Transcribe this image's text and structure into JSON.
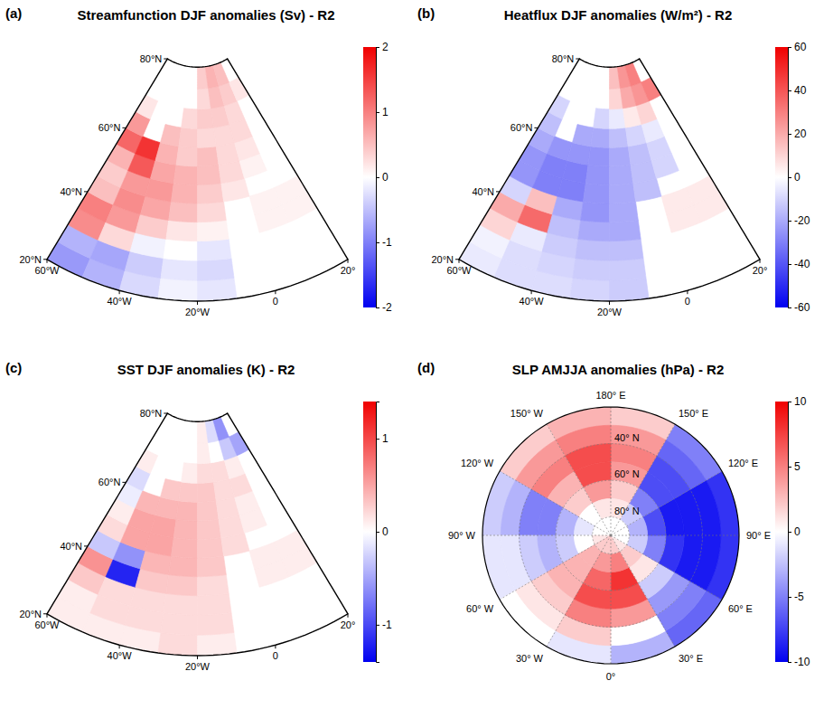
{
  "chart_data": [
    {
      "type": "heatmap",
      "label": "(a)",
      "title": "Streamfunction DJF anomalies (Sv) - R2",
      "xlim": [
        -60,
        20
      ],
      "ylim": [
        20,
        80
      ],
      "xticks": [
        {
          "value": -60,
          "label": "60°W"
        },
        {
          "value": -40,
          "label": "40°W"
        },
        {
          "value": -20,
          "label": "20°W"
        },
        0,
        {
          "value": 20,
          "label": "20°"
        }
      ],
      "yticks": [
        {
          "value": 20,
          "label": "20°N"
        },
        {
          "value": 40,
          "label": "40°N"
        },
        {
          "value": 60,
          "label": "60°N"
        },
        {
          "value": 80,
          "label": "80°N"
        }
      ],
      "x_bins": [
        -60,
        -50,
        -40,
        -30,
        -20,
        -10,
        0,
        10,
        20
      ],
      "y_bins": [
        20,
        25,
        30,
        35,
        40,
        45,
        50,
        55,
        60,
        65,
        70,
        75,
        80
      ],
      "cells": [
        [
          -0.8,
          -0.6,
          -0.3,
          -0.1,
          -0.2,
          null,
          null,
          null
        ],
        [
          -0.6,
          -0.7,
          -0.4,
          -0.2,
          -0.3,
          null,
          null,
          null
        ],
        [
          0.9,
          0.3,
          -0.1,
          0.0,
          -0.2,
          null,
          null,
          null
        ],
        [
          1.0,
          0.8,
          0.4,
          0.2,
          0.1,
          null,
          0.1,
          0.1
        ],
        [
          0.5,
          0.9,
          0.7,
          0.5,
          0.3,
          null,
          0.1,
          0.1
        ],
        [
          0.4,
          0.8,
          0.8,
          0.6,
          0.4,
          0.2,
          null,
          null
        ],
        [
          0.6,
          1.3,
          0.7,
          0.6,
          0.5,
          0.3,
          0.1,
          null
        ],
        [
          1.2,
          1.6,
          0.6,
          0.4,
          0.5,
          0.3,
          0.2,
          null
        ],
        [
          0.8,
          null,
          0.5,
          0.4,
          0.3,
          0.3,
          0.3,
          null
        ],
        [
          0.2,
          null,
          null,
          0.3,
          0.4,
          0.4,
          0.3,
          null
        ],
        [
          null,
          null,
          null,
          null,
          0.3,
          0.5,
          0.4,
          0.2
        ],
        [
          null,
          null,
          null,
          null,
          0.4,
          0.6,
          0.5,
          null
        ]
      ],
      "colorbar": {
        "range": [
          -2,
          2
        ],
        "ticks": [
          -2,
          -1,
          0,
          1,
          2
        ]
      }
    },
    {
      "type": "heatmap",
      "label": "(b)",
      "title": "Heatflux DJF anomalies (W/m²) - R2",
      "xlim": [
        -60,
        20
      ],
      "ylim": [
        20,
        80
      ],
      "xticks": [
        {
          "value": -60,
          "label": "60°W"
        },
        {
          "value": -40,
          "label": "40°W"
        },
        {
          "value": -20,
          "label": "20°W"
        },
        0,
        {
          "value": 20,
          "label": "20°"
        }
      ],
      "yticks": [
        {
          "value": 20,
          "label": "20°N"
        },
        {
          "value": 40,
          "label": "40°N"
        },
        {
          "value": 60,
          "label": "60°N"
        },
        {
          "value": 80,
          "label": "80°N"
        }
      ],
      "x_bins": [
        -60,
        -50,
        -40,
        -30,
        -20,
        -10,
        0,
        10,
        20
      ],
      "y_bins": [
        20,
        25,
        30,
        35,
        40,
        45,
        50,
        55,
        60,
        65,
        70,
        75,
        80
      ],
      "cells": [
        [
          -5,
          -8,
          -8,
          -10,
          -12,
          null,
          null,
          null
        ],
        [
          -3,
          -8,
          -10,
          -12,
          -12,
          null,
          null,
          null
        ],
        [
          10,
          -5,
          -12,
          -15,
          -15,
          null,
          null,
          null
        ],
        [
          20,
          35,
          -15,
          -20,
          -20,
          null,
          5,
          5
        ],
        [
          -10,
          15,
          -20,
          -25,
          -20,
          null,
          5,
          5
        ],
        [
          -25,
          -30,
          -30,
          -25,
          -20,
          -15,
          null,
          null
        ],
        [
          -25,
          -30,
          -30,
          -25,
          -20,
          -15,
          -10,
          null
        ],
        [
          -20,
          -25,
          -25,
          -25,
          -20,
          -15,
          -10,
          null
        ],
        [
          -15,
          null,
          -20,
          -20,
          -15,
          -10,
          -5,
          null
        ],
        [
          -10,
          null,
          null,
          -10,
          -5,
          5,
          10,
          null
        ],
        [
          null,
          null,
          null,
          null,
          10,
          20,
          25,
          30
        ],
        [
          null,
          null,
          null,
          null,
          15,
          25,
          30,
          null
        ]
      ],
      "colorbar": {
        "range": [
          -60,
          60
        ],
        "ticks": [
          -60,
          -40,
          -20,
          0,
          20,
          40,
          60
        ]
      }
    },
    {
      "type": "heatmap",
      "label": "(c)",
      "title": "SST DJF anomalies (K) - R2",
      "xlim": [
        -60,
        20
      ],
      "ylim": [
        20,
        80
      ],
      "xticks": [
        {
          "value": -60,
          "label": "60°W"
        },
        {
          "value": -40,
          "label": "40°W"
        },
        {
          "value": -20,
          "label": "20°W"
        },
        0,
        {
          "value": 20,
          "label": "20°"
        }
      ],
      "yticks": [
        {
          "value": 20,
          "label": "20°N"
        },
        {
          "value": 40,
          "label": "40°N"
        },
        {
          "value": 60,
          "label": "60°N"
        },
        {
          "value": 80,
          "label": "80°N"
        }
      ],
      "x_bins": [
        -60,
        -50,
        -40,
        -30,
        -20,
        -10,
        0,
        10,
        20
      ],
      "y_bins": [
        20,
        25,
        30,
        35,
        40,
        45,
        50,
        55,
        60,
        65,
        70,
        75,
        80
      ],
      "cells": [
        [
          0.1,
          0.1,
          0.1,
          0.2,
          0.1,
          null,
          null,
          null
        ],
        [
          0.1,
          0.2,
          0.2,
          0.2,
          0.2,
          null,
          null,
          null
        ],
        [
          0.3,
          0.2,
          0.2,
          0.2,
          0.2,
          null,
          null,
          null
        ],
        [
          0.6,
          -1.2,
          0.3,
          0.3,
          0.2,
          null,
          0.1,
          0.1
        ],
        [
          -0.3,
          -0.6,
          0.4,
          0.4,
          0.3,
          null,
          0.1,
          0.1
        ],
        [
          0.2,
          0.5,
          0.5,
          0.4,
          0.3,
          0.2,
          null,
          null
        ],
        [
          0.1,
          0.5,
          0.5,
          0.4,
          0.3,
          0.2,
          0.1,
          null
        ],
        [
          -0.1,
          0.4,
          0.4,
          0.4,
          0.3,
          0.2,
          0.1,
          null
        ],
        [
          -0.2,
          null,
          0.3,
          0.3,
          0.3,
          0.2,
          0.2,
          null
        ],
        [
          0.1,
          null,
          null,
          0.1,
          0.2,
          0.2,
          0.1,
          null
        ],
        [
          null,
          null,
          null,
          null,
          0.1,
          0.0,
          -0.3,
          -0.5
        ],
        [
          null,
          null,
          null,
          null,
          0.1,
          -0.2,
          -0.6,
          null
        ]
      ],
      "colorbar": {
        "range": [
          -1.4,
          1.4
        ],
        "ticks": [
          -1,
          0,
          1
        ]
      }
    },
    {
      "type": "polar",
      "label": "(d)",
      "title": "SLP AMJJA anomalies (hPa) - R2",
      "xlim": [
        0,
        360
      ],
      "ylim": [
        20,
        90
      ],
      "grid": true,
      "xticks": [
        {
          "value": 0,
          "label": "0°"
        },
        {
          "value": 30,
          "label": "30° E"
        },
        {
          "value": 60,
          "label": "60° E"
        },
        {
          "value": 90,
          "label": "90° E"
        },
        {
          "value": 120,
          "label": "120° E"
        },
        {
          "value": 150,
          "label": "150° E"
        },
        {
          "value": 180,
          "label": "180° E"
        },
        {
          "value": 210,
          "label": "150° W"
        },
        {
          "value": 240,
          "label": "120° W"
        },
        {
          "value": 270,
          "label": "90° W"
        },
        {
          "value": 300,
          "label": "60° W"
        },
        {
          "value": 330,
          "label": "30° W"
        }
      ],
      "yticks": [
        {
          "value": 40,
          "label": "40° N"
        },
        {
          "value": 60,
          "label": "60° N"
        },
        {
          "value": 80,
          "label": "80° N"
        }
      ],
      "x_bins": [
        0,
        30,
        60,
        90,
        120,
        150,
        180,
        210,
        240,
        270,
        300,
        330,
        360
      ],
      "y_bins": [
        20,
        30,
        40,
        50,
        60,
        70,
        80,
        90
      ],
      "cells": [
        [
          -3,
          -6,
          -8,
          -8,
          -5,
          2,
          3,
          2,
          -2,
          -1,
          0,
          -1
        ],
        [
          0,
          -5,
          -9,
          -9,
          -6,
          4,
          5,
          4,
          -3,
          -1,
          1,
          2
        ],
        [
          4,
          -4,
          -9,
          -9,
          -7,
          5,
          7,
          5,
          -5,
          -2,
          2,
          5
        ],
        [
          7,
          -2,
          -8,
          -9,
          -7,
          4,
          7,
          3,
          -5,
          -3,
          3,
          7
        ],
        [
          8,
          1,
          -5,
          -7,
          -5,
          2,
          4,
          2,
          -3,
          -2,
          3,
          6
        ],
        [
          5,
          2,
          -2,
          -3,
          -2,
          1,
          1,
          0,
          -1,
          0,
          3,
          4
        ],
        [
          2,
          1,
          0,
          0,
          0,
          0,
          0,
          0,
          0,
          1,
          2,
          2
        ]
      ],
      "colorbar": {
        "range": [
          -10,
          10
        ],
        "ticks": [
          -10,
          -5,
          0,
          5,
          10
        ]
      }
    }
  ]
}
